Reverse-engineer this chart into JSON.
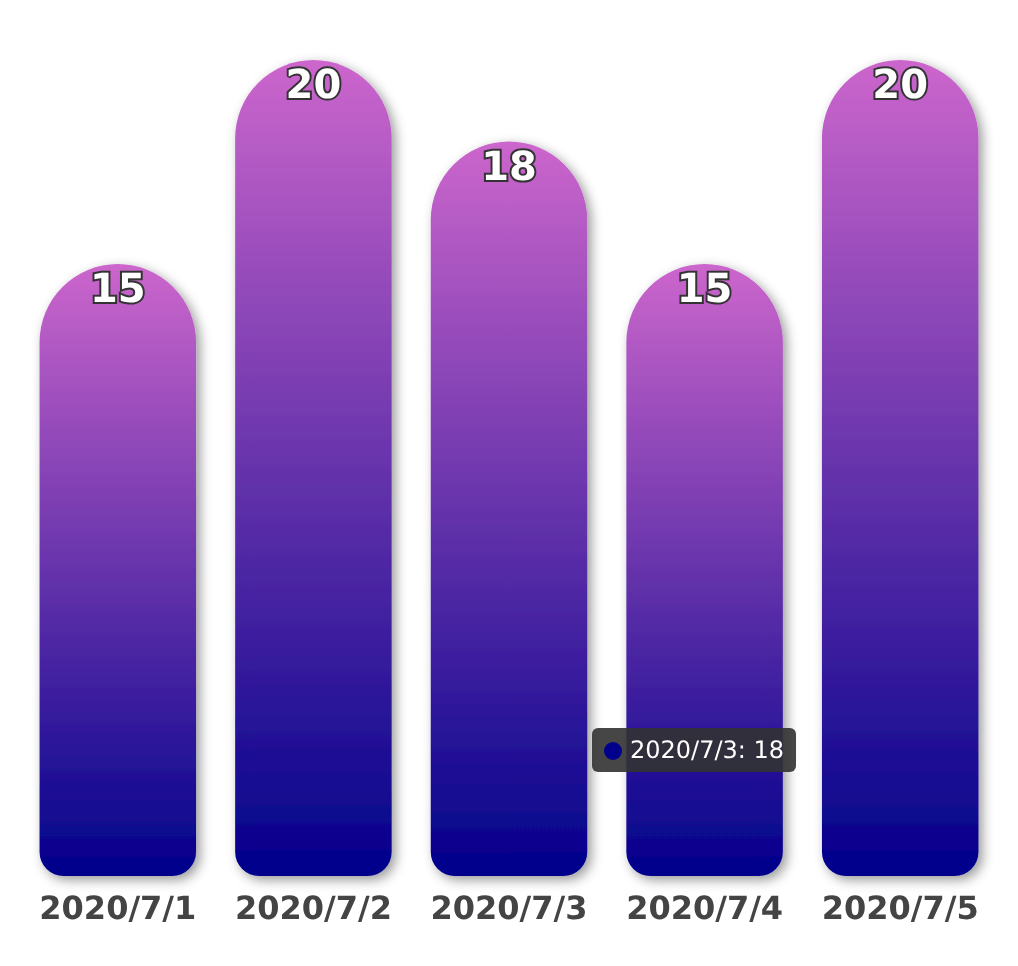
{
  "chart_data": {
    "type": "bar",
    "categories": [
      "2020/7/1",
      "2020/7/2",
      "2020/7/3",
      "2020/7/4",
      "2020/7/5"
    ],
    "series": [
      {
        "color": "#00008b",
        "values": [
          15,
          20,
          18,
          15,
          20
        ]
      }
    ],
    "data_labels": true,
    "annotations": [
      "2020/7/3: 18"
    ]
  }
}
